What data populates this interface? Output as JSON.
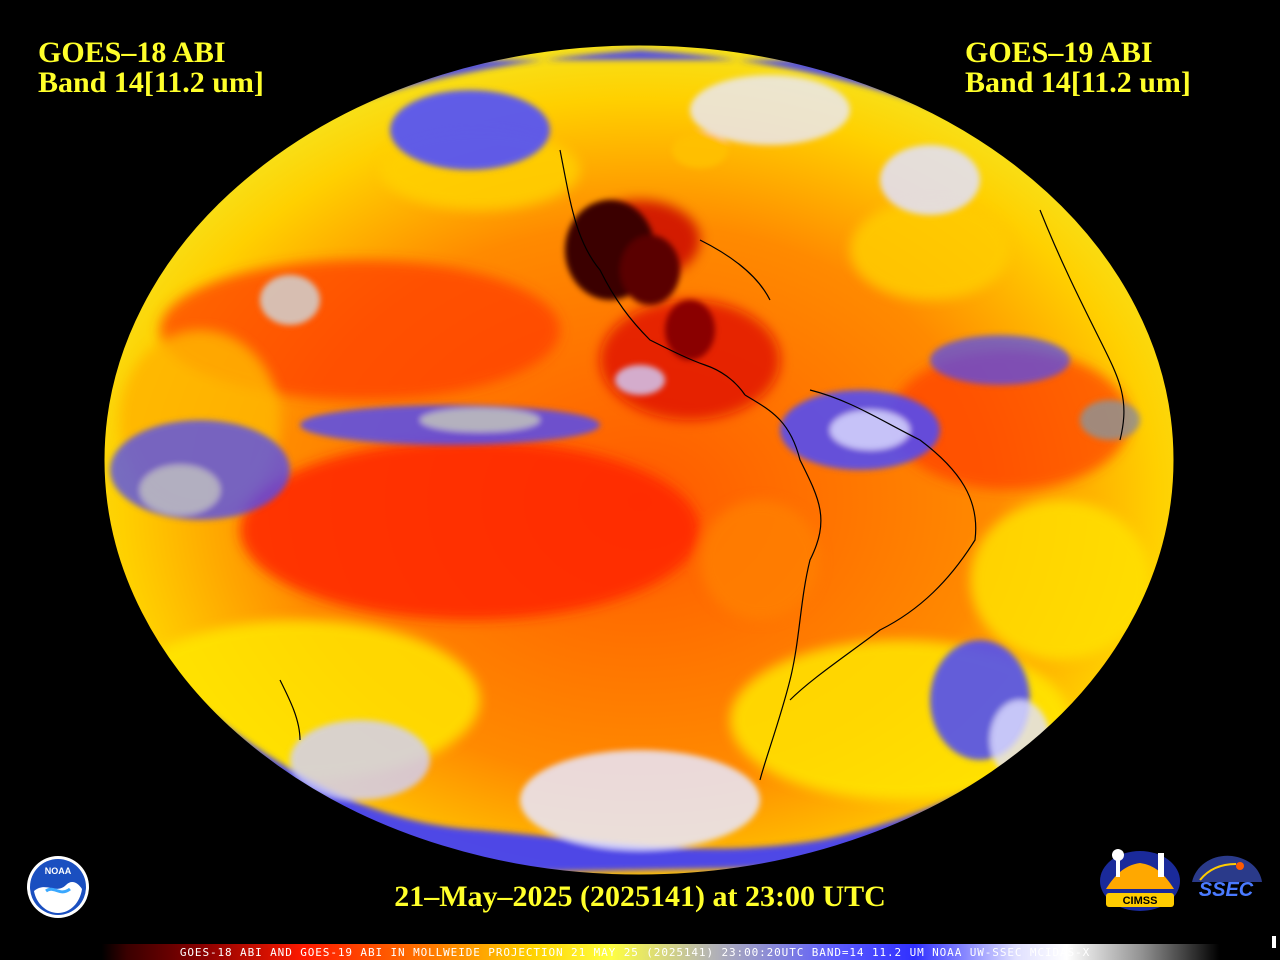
{
  "map": {
    "projection": "Mollweide",
    "left_title": {
      "line1": "GOES–18 ABI",
      "line2": "Band 14[11.2 um]"
    },
    "right_title": {
      "line1": "GOES–19 ABI",
      "line2": "Band 14[11.2 um]"
    },
    "timestamp": "21–May–2025 (2025141) at 23:00 UTC",
    "colorbar_caption": "GOES-18 ABI AND GOES-19 ABI IN MOLLWEIDE PROJECTION 21 MAY 25 (2025141) 23:00:20UTC BAND=14 11.2 UM NOAA UW-SSEC MCIDAS-X",
    "colors": {
      "background": "#000000",
      "title_text": "#ffff2a",
      "cold_cloud_blue": "#3a3aff",
      "warm_ocean_orange": "#ff6a00",
      "very_warm_red": "#d80000",
      "hot_land_dark": "#3a0000",
      "moderate_yellow": "#ffe000"
    },
    "logos": {
      "noaa": {
        "text": "NOAA",
        "icon": "noaa-logo-icon"
      },
      "cimss": {
        "text": "CIMSS",
        "icon": "cimss-logo-icon"
      },
      "ssec": {
        "text": "SSEC",
        "icon": "ssec-logo-icon"
      }
    }
  }
}
